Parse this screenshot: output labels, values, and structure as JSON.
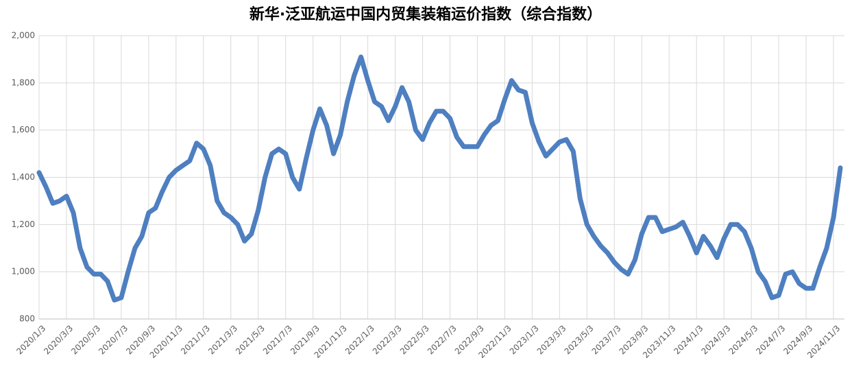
{
  "chart_data": {
    "type": "line",
    "title": "新华·泛亚航运中国内贸集装箱运价指数（综合指数）",
    "categories": [
      "2020/1/3",
      null,
      null,
      null,
      "2020/3/3",
      null,
      null,
      null,
      "2020/5/3",
      null,
      null,
      null,
      "2020/7/3",
      null,
      null,
      null,
      "2020/9/3",
      null,
      null,
      null,
      "2020/11/3",
      null,
      null,
      null,
      "2021/1/3",
      null,
      null,
      null,
      "2021/3/3",
      null,
      null,
      null,
      "2021/5/3",
      null,
      null,
      null,
      "2021/7/3",
      null,
      null,
      null,
      "2021/9/3",
      null,
      null,
      null,
      "2021/11/3",
      null,
      null,
      null,
      "2022/1/3",
      null,
      null,
      null,
      "2022/3/3",
      null,
      null,
      null,
      "2022/5/3",
      null,
      null,
      null,
      "2022/7/3",
      null,
      null,
      null,
      "2022/9/3",
      null,
      null,
      null,
      "2022/11/3",
      null,
      null,
      null,
      "2023/1/3",
      null,
      null,
      null,
      "2023/3/3",
      null,
      null,
      null,
      "2023/5/3",
      null,
      null,
      null,
      "2023/7/3",
      null,
      null,
      null,
      "2023/9/3",
      null,
      null,
      null,
      "2023/11/3",
      null,
      null,
      null,
      "2024/1/3",
      null,
      null,
      null,
      "2024/3/3",
      null,
      null,
      null,
      "2024/5/3",
      null,
      null,
      null,
      "2024/7/3",
      null,
      null,
      null,
      "2024/9/3",
      null,
      null,
      null,
      "2024/11/3",
      null
    ],
    "series": [
      {
        "color": "#4e7fc0",
        "values": [
          1420,
          1360,
          1290,
          1300,
          1320,
          1250,
          1100,
          1020,
          990,
          990,
          960,
          880,
          890,
          1000,
          1100,
          1150,
          1250,
          1270,
          1340,
          1400,
          1430,
          1450,
          1470,
          1545,
          1520,
          1450,
          1300,
          1250,
          1230,
          1200,
          1130,
          1160,
          1260,
          1400,
          1500,
          1520,
          1500,
          1400,
          1350,
          1480,
          1600,
          1690,
          1620,
          1500,
          1580,
          1720,
          1830,
          1910,
          1810,
          1720,
          1700,
          1640,
          1700,
          1780,
          1720,
          1600,
          1560,
          1630,
          1680,
          1680,
          1650,
          1570,
          1530,
          1530,
          1530,
          1580,
          1620,
          1640,
          1730,
          1810,
          1770,
          1760,
          1630,
          1550,
          1490,
          1520,
          1550,
          1560,
          1510,
          1310,
          1200,
          1150,
          1110,
          1080,
          1040,
          1010,
          990,
          1050,
          1160,
          1230,
          1230,
          1170,
          1180,
          1190,
          1210,
          1150,
          1080,
          1150,
          1110,
          1060,
          1140,
          1200,
          1200,
          1170,
          1100,
          1000,
          960,
          890,
          900,
          990,
          1000,
          950,
          930,
          930,
          1020,
          1100,
          1230,
          1440
        ]
      }
    ],
    "ylim": [
      800,
      2000
    ],
    "yticks": [
      800,
      {
        "value": 1000,
        "label": "1,000"
      },
      {
        "value": 1200,
        "label": "1,200"
      },
      {
        "value": 1400,
        "label": "1,400"
      },
      {
        "value": 1600,
        "label": "1,600"
      },
      {
        "value": 1800,
        "label": "1,800"
      },
      {
        "value": 2000,
        "label": "2,000"
      }
    ],
    "grid": true
  }
}
